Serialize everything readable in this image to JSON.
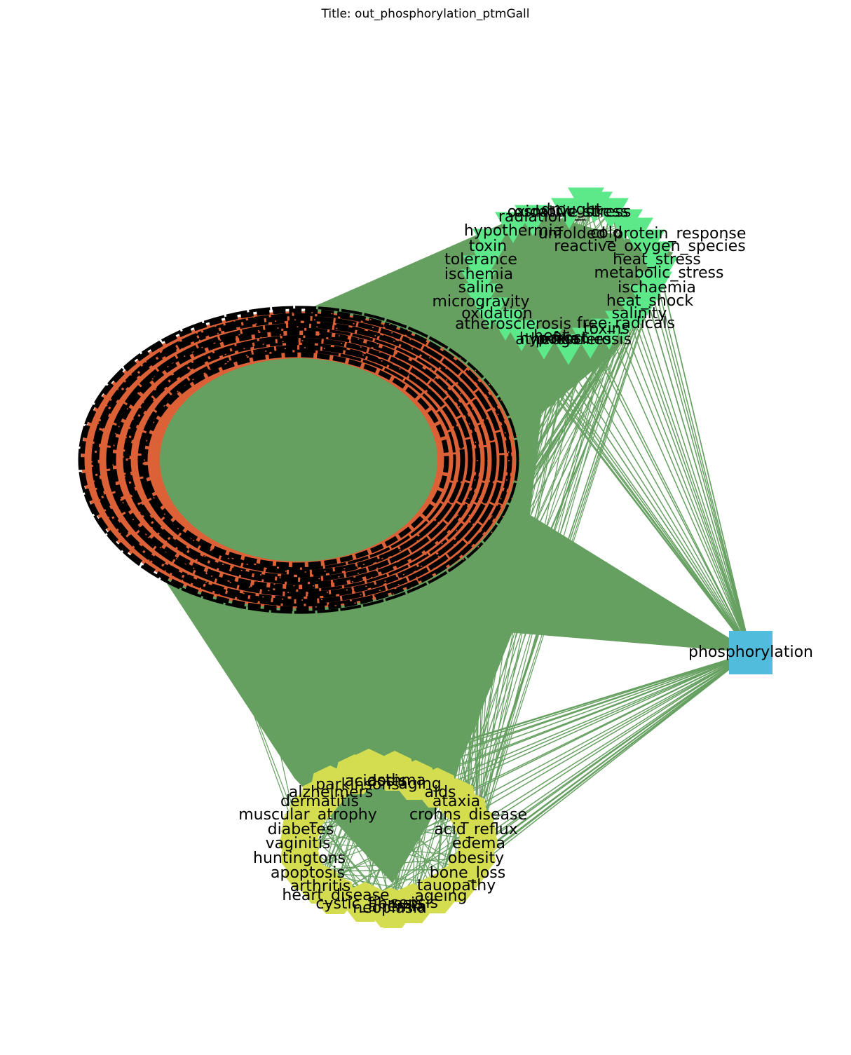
{
  "title": "Title: out_phosphorylation_ptmGall",
  "colors": {
    "edge": "#66a061",
    "protein_node": "#dd6136",
    "protein_outline": "#000000",
    "stress_node": "#5de98a",
    "disease_node": "#d4dd4f",
    "hub_node": "#52bcdc",
    "text": "#000000"
  },
  "hub": {
    "label": "phosphorylation",
    "shape": "square"
  },
  "stress_nodes": [
    "oxidative_stress",
    "radiation",
    "hypothermia",
    "toxin",
    "tolerance",
    "ischemia",
    "saline",
    "microgravity",
    "oxidation",
    "atherosclerosis",
    "heat",
    "hypoxia",
    "atherosclerosis",
    "frost",
    "cold",
    "osmotic_stress",
    "unfolded_protein_response",
    "reactive_oxygen_species",
    "heat_stress",
    "metabolic_stress",
    "ischaemia",
    "heat_shock",
    "salinity",
    "free_radicals",
    "toxins",
    "drought",
    "progenies"
  ],
  "disease_nodes": [
    "parkinsons",
    "alzheimers",
    "dermatitis",
    "muscular_atrophy",
    "diabetes",
    "vaginitis",
    "huntingtons",
    "apoptosis",
    "arthritis",
    "heart_disease",
    "cystic_fibrosis",
    "neoplasia",
    "anemia",
    "sepsis",
    "ageing",
    "tauopathy",
    "bone_loss",
    "obesity",
    "edema",
    "acid_reflux",
    "crohns_disease",
    "ataxia",
    "aids",
    "aging",
    "asthma",
    "acidosis"
  ]
}
